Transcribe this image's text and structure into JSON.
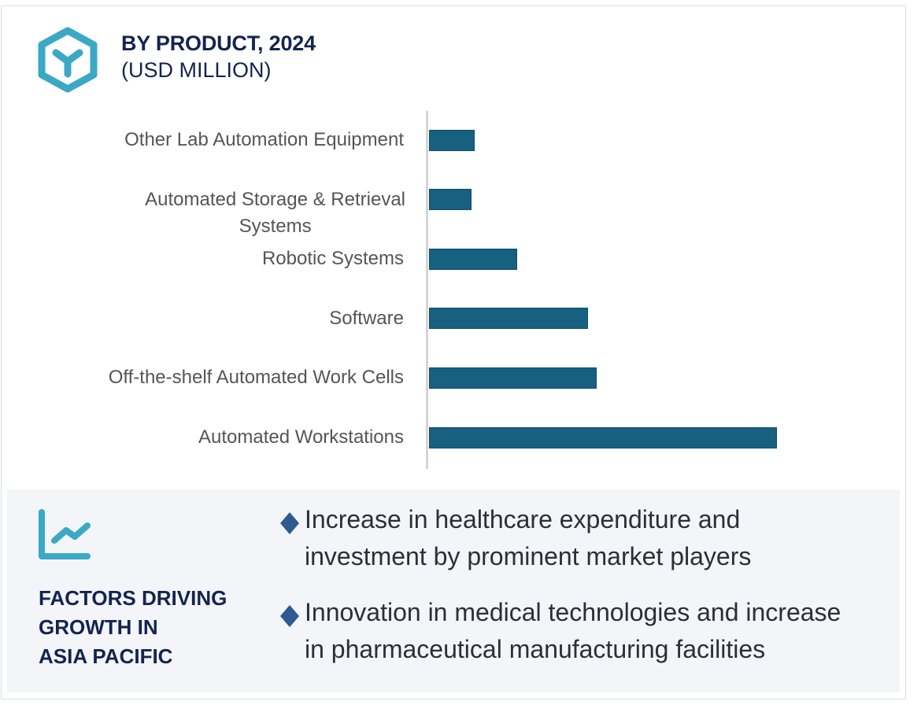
{
  "header": {
    "icon": "hexagon-y-icon",
    "title": "BY PRODUCT, 2024",
    "subtitle": "(USD MILLION)"
  },
  "colors": {
    "bar": "#17607f",
    "title": "#13244f",
    "accent_icon": "#3ba8c6",
    "bullet_diamond": "#2f5a8f",
    "panel_bg": "#f3f5f9"
  },
  "chart_data": {
    "type": "bar",
    "orientation": "horizontal",
    "title": "BY PRODUCT, 2024",
    "subtitle": "(USD MILLION)",
    "xlabel": "",
    "ylabel": "",
    "grid": false,
    "legend": "none",
    "value_axis_shown": false,
    "note": "No numeric axis or data labels shown; values are relative estimates (largest = 100).",
    "categories": [
      "Other Lab Automation Equipment",
      "Automated Storage & Retrieval Systems",
      "Robotic Systems",
      "Software",
      "Off-the-shelf Automated Work Cells",
      "Automated Workstations"
    ],
    "category_label_lines": [
      [
        "Other Lab Automation Equipment"
      ],
      [
        "Automated Storage & Retrieval",
        "Systems"
      ],
      [
        "Robotic Systems"
      ],
      [
        "Software"
      ],
      [
        "Off-the-shelf Automated Work Cells"
      ],
      [
        "Automated Workstations"
      ]
    ],
    "values": [
      13.1,
      12.2,
      25.3,
      45.7,
      48.2,
      100
    ],
    "xlim": [
      0,
      100
    ]
  },
  "factors": {
    "icon": "line-chart-trend-icon",
    "title_lines": [
      "FACTORS DRIVING",
      "GROWTH IN",
      "ASIA PACIFIC"
    ],
    "bullets": [
      {
        "icon": "diamond-bullet-icon",
        "lines": [
          "Increase in healthcare expenditure and",
          "investment by prominent market players"
        ]
      },
      {
        "icon": "diamond-bullet-icon",
        "lines": [
          "Innovation in medical technologies and increase",
          "in pharmaceutical manufacturing facilities"
        ]
      }
    ]
  }
}
